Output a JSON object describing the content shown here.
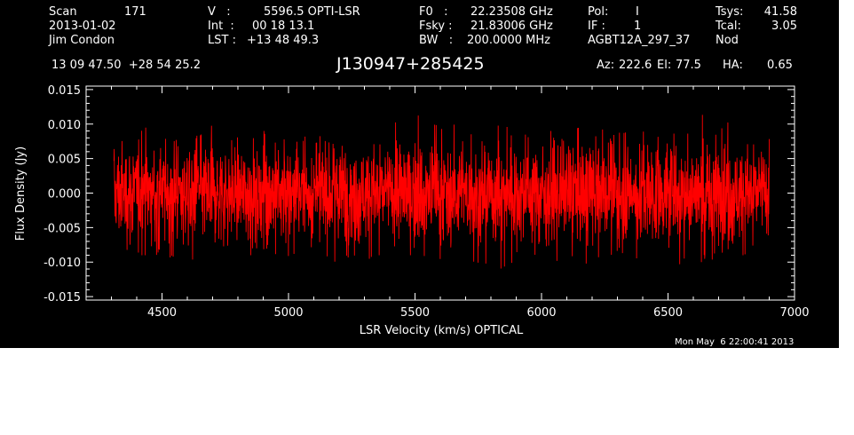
{
  "header": {
    "scan_label": "Scan",
    "scan_value": "171",
    "date": "2013-01-02",
    "observer": "Jim Condon",
    "v_label": "V   :",
    "v_value": "5596.5 OPTI-LSR",
    "int_label": "Int  :",
    "int_value": "00 18 13.1",
    "lst_label": "LST :",
    "lst_value": "+13 48 49.3",
    "f0_label": "F0   :",
    "f0_value": "22.23508 GHz",
    "fsky_label": "Fsky :",
    "fsky_value": "21.83006 GHz",
    "bw_label": "BW   :",
    "bw_value": "200.0000 MHz",
    "pol_label": "Pol:",
    "pol_value": "I",
    "if_label": "IF :",
    "if_value": "1",
    "project": "AGBT12A_297_37",
    "tsys_label": "Tsys:",
    "tsys_value": "41.58",
    "tcal_label": "Tcal:",
    "tcal_value": "3.05",
    "mode": "Nod",
    "coords": "13 09 47.50  +28 54 25.2",
    "source": "J130947+285425",
    "az_label": "Az:",
    "az_value": "222.6",
    "el_label": "El:",
    "el_value": "77.5",
    "ha_label": "HA:",
    "ha_value": "0.65"
  },
  "footer": {
    "timestamp": "Mon May  6 22:00:41 2013"
  },
  "colors": {
    "background": "#000000",
    "axes": "#ffffff",
    "series": "#ff0000"
  },
  "chart_data": {
    "type": "line",
    "xlabel": "LSR Velocity (km/s) OPTICAL",
    "ylabel": "Flux Density (Jy)",
    "xlim": [
      4200,
      7000
    ],
    "ylim": [
      -0.0155,
      0.0155
    ],
    "xticks": [
      4500,
      5000,
      5500,
      6000,
      6500,
      7000
    ],
    "yticks": [
      -0.015,
      -0.01,
      -0.005,
      0.0,
      0.005,
      0.01,
      0.015
    ],
    "ytick_labels": [
      "-0.015",
      "-0.010",
      "-0.005",
      "0.000",
      "0.005",
      "0.010",
      "0.015"
    ],
    "grid": false,
    "series": [
      {
        "x_range": [
          4310,
          6900
        ],
        "mean": 0.0,
        "rms": 0.0035,
        "x": [
          4310,
          4330,
          4350,
          4400,
          4500,
          4600,
          4700,
          4800,
          4900,
          5000,
          5100,
          5200,
          5300,
          5400,
          5500,
          5600,
          5700,
          5800,
          5900,
          6000,
          6100,
          6200,
          6300,
          6400,
          6500,
          6600,
          6660,
          6700,
          6800,
          6900
        ],
        "y_high": [
          0.008,
          0.011,
          0.01,
          0.01,
          0.009,
          0.009,
          0.01,
          0.01,
          0.009,
          0.009,
          0.008,
          0.009,
          0.01,
          0.01,
          0.012,
          0.011,
          0.009,
          0.011,
          0.009,
          0.009,
          0.009,
          0.01,
          0.009,
          0.009,
          0.009,
          0.01,
          0.0145,
          0.011,
          0.01,
          0.008
        ],
        "y_low": [
          -0.003,
          -0.006,
          -0.008,
          -0.009,
          -0.009,
          -0.01,
          -0.01,
          -0.009,
          -0.009,
          -0.01,
          -0.011,
          -0.01,
          -0.01,
          -0.009,
          -0.009,
          -0.01,
          -0.011,
          -0.012,
          -0.01,
          -0.011,
          -0.01,
          -0.011,
          -0.009,
          -0.01,
          -0.013,
          -0.01,
          -0.01,
          -0.009,
          -0.009,
          -0.006
        ]
      }
    ]
  }
}
